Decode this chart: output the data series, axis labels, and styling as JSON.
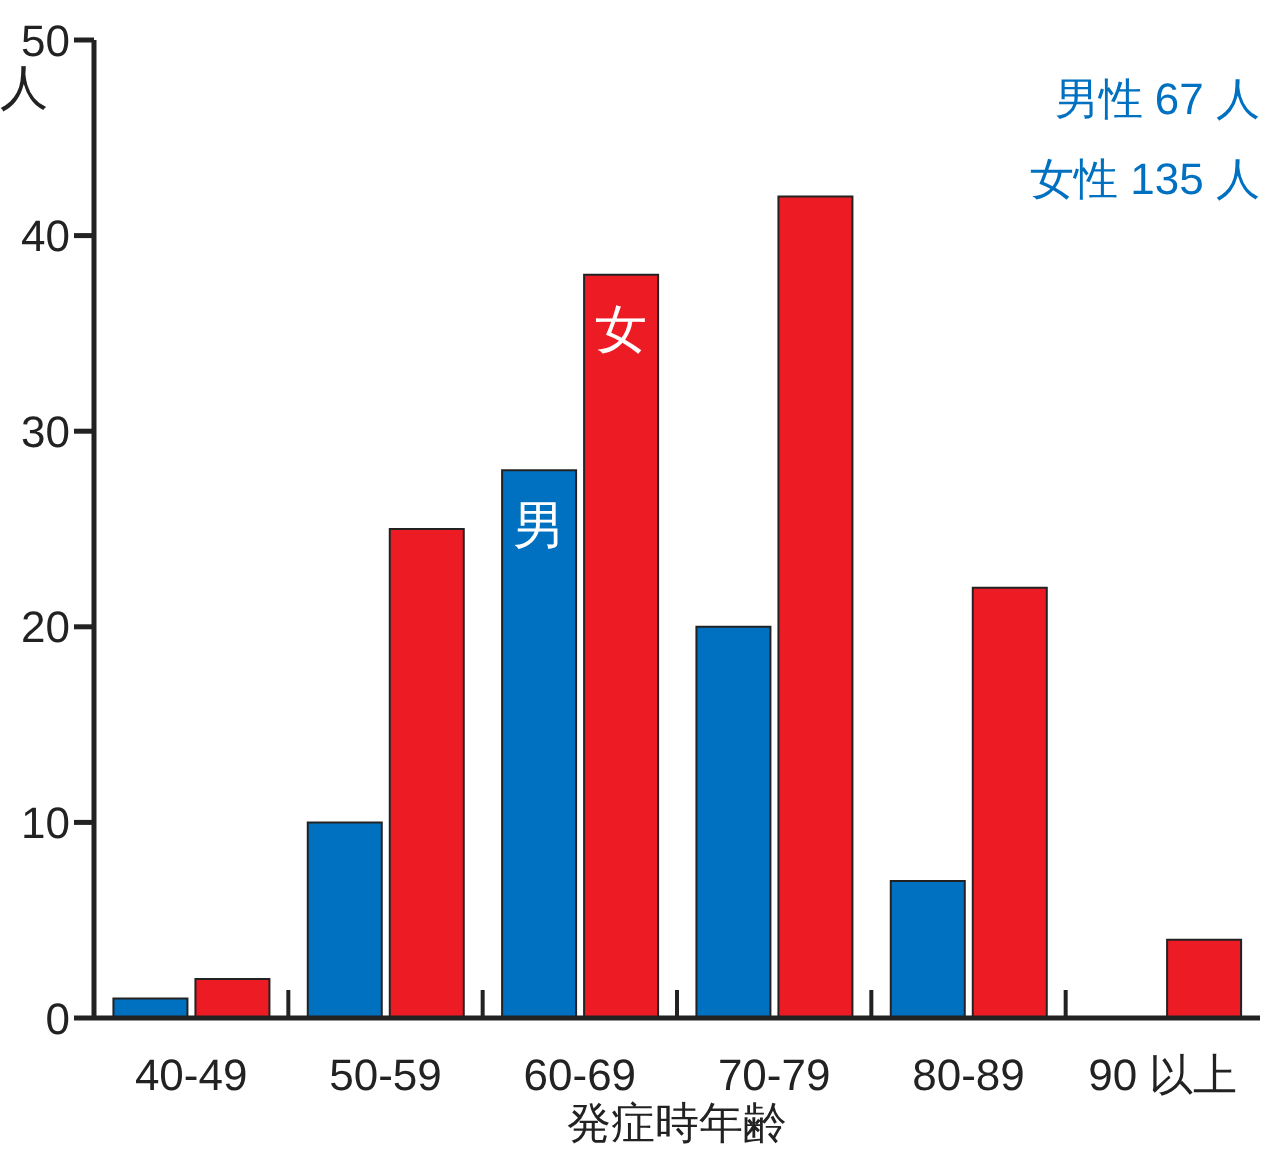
{
  "chart_data": {
    "type": "bar",
    "xlabel": "発症時年齢",
    "ylabel": "人",
    "categories": [
      "40-49",
      "50-59",
      "60-69",
      "70-79",
      "80-89",
      "90 以上"
    ],
    "series": [
      {
        "color": "#0070c0",
        "values": [
          1,
          10,
          28,
          20,
          7,
          0
        ]
      },
      {
        "color": "#ed1c24",
        "values": [
          2,
          25,
          38,
          42,
          22,
          4
        ]
      }
    ],
    "ylim": [
      0,
      50
    ],
    "yticks": [
      0,
      10,
      20,
      30,
      40,
      50
    ],
    "annotations": [
      "男性 67 人",
      "女性 135 人",
      {
        "text": "男",
        "x": "60-69",
        "y": 25
      },
      {
        "text": "女",
        "x": "60-69",
        "y": 35
      }
    ]
  }
}
